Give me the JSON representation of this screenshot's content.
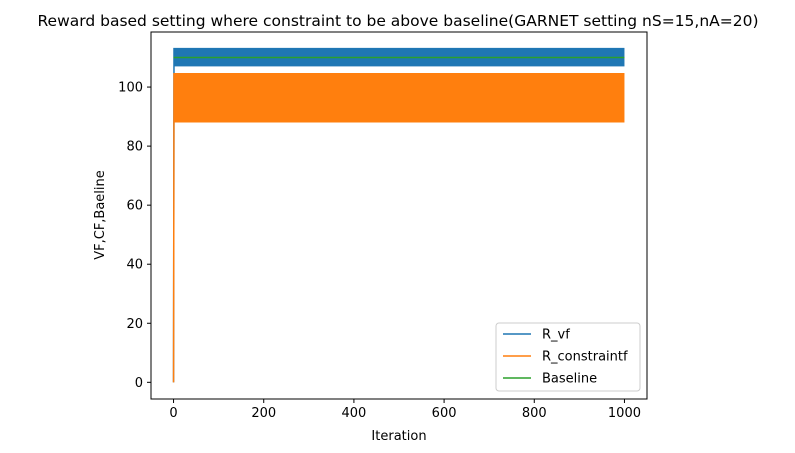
{
  "chart_data": {
    "type": "line",
    "title": "Reward based setting where constraint to be above baseline(GARNET setting nS=15,nA=20)",
    "xlabel": "Iteration",
    "ylabel": "VF,CF,Baeline",
    "xlim": [
      -50,
      1050
    ],
    "ylim": [
      -5.65,
      118.65
    ],
    "xticks": [
      0,
      200,
      400,
      600,
      800,
      1000
    ],
    "xtick_labels": [
      "0",
      "200",
      "400",
      "600",
      "800",
      "1000"
    ],
    "yticks": [
      0,
      20,
      40,
      60,
      80,
      100
    ],
    "ytick_labels": [
      "0",
      "20",
      "40",
      "60",
      "80",
      "100"
    ],
    "grid": false,
    "legend_position": "lower-right",
    "series": [
      {
        "name": "R_vf",
        "color": "#1f77b4",
        "style": "oscillating band",
        "x": [
          0,
          1,
          1000
        ],
        "values": [
          0,
          113,
          113
        ],
        "band_low": 107,
        "band_high": 113,
        "band_x": [
          1,
          1000
        ]
      },
      {
        "name": "R_constraintf",
        "color": "#ff7f0e",
        "style": "oscillating band",
        "x": [
          0,
          1,
          1000
        ],
        "values": [
          0,
          104.5,
          104.5
        ],
        "band_low": 88,
        "band_high": 104.5,
        "band_x": [
          1,
          1000
        ]
      },
      {
        "name": "Baseline",
        "color": "#2ca02c",
        "style": "line",
        "x": [
          0,
          1000
        ],
        "values": [
          110,
          110
        ]
      }
    ]
  }
}
